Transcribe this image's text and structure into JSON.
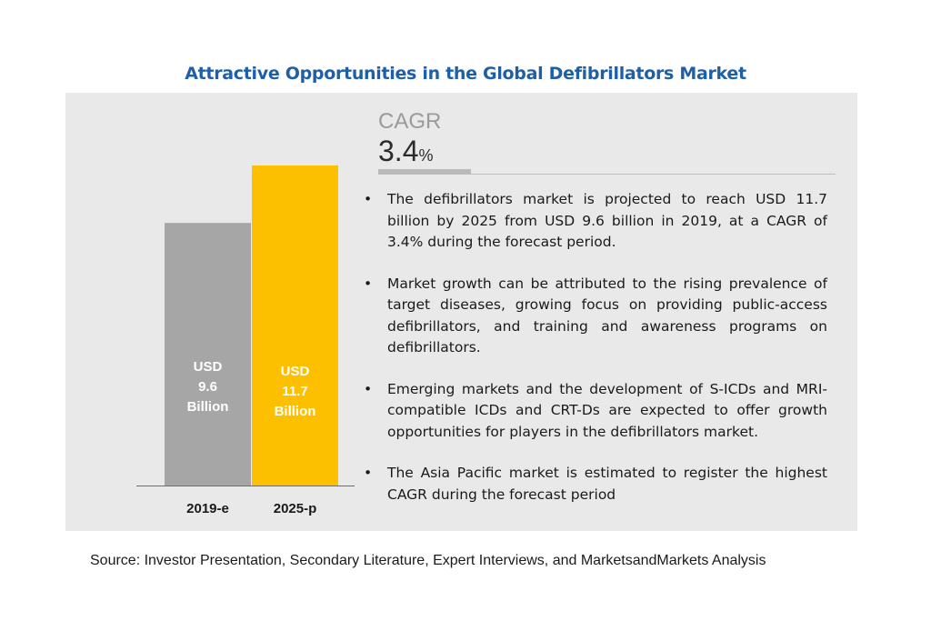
{
  "title": "Attractive Opportunities in the Global Defibrillators Market",
  "cagr": {
    "label": "CAGR",
    "value": "3.4",
    "unit": "%"
  },
  "bullets": [
    "The defibrillators market is projected to reach USD 11.7 billion by 2025 from USD 9.6 billion in 2019, at a CAGR of 3.4% during the forecast period.",
    "Market growth can be attributed to the rising prevalence of target diseases, growing focus on providing public-access defibrillators, and training and awareness programs on defibrillators.",
    "Emerging markets and the development of S-ICDs and MRI-compatible ICDs and CRT-Ds are expected to offer growth opportunities for players in the defibrillators market.",
    "The Asia Pacific market is estimated to register the highest CAGR during the forecast period"
  ],
  "bullet_glyph": "•",
  "source": "Source: Investor Presentation, Secondary Literature, Expert Interviews, and MarketsandMarkets Analysis",
  "colors": {
    "title": "#1f5fa8",
    "bar_2019": "#a6a6a6",
    "bar_2025": "#fcc000",
    "panel": "#e9e9e9"
  },
  "chart_data": {
    "type": "bar",
    "categories": [
      "2019-e",
      "2025-p"
    ],
    "values": [
      9.6,
      11.7
    ],
    "bar_labels": [
      [
        "USD",
        "9.6",
        "Billion"
      ],
      [
        "USD",
        "11.7",
        "Billion"
      ]
    ],
    "title": "",
    "xlabel": "",
    "ylabel": "",
    "ylim": [
      0,
      11.7
    ],
    "grid": false,
    "legend": "none"
  }
}
